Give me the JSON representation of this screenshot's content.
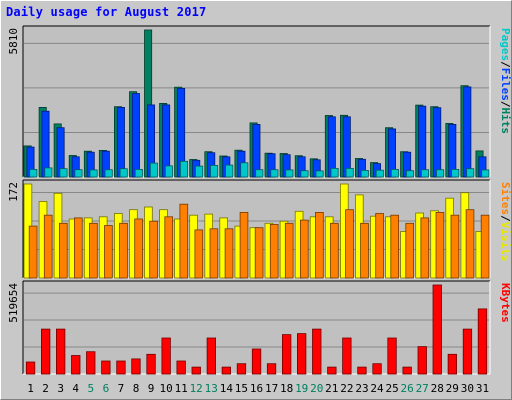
{
  "title": "Daily usage for August 2017",
  "chart_data": {
    "type": "bar",
    "categories": [
      "1",
      "2",
      "3",
      "4",
      "5",
      "6",
      "7",
      "8",
      "9",
      "10",
      "11",
      "12",
      "13",
      "14",
      "15",
      "16",
      "17",
      "18",
      "19",
      "20",
      "21",
      "22",
      "23",
      "24",
      "25",
      "26",
      "27",
      "28",
      "29",
      "30",
      "31"
    ],
    "weekend_days": [
      5,
      6,
      12,
      13,
      19,
      20,
      26,
      27
    ],
    "panels": [
      {
        "name": "hits-files-pages",
        "max_label": "5810",
        "ylim": [
          0,
          5810
        ],
        "legend": [
          {
            "text": "Pages",
            "color": "#00c8c8"
          },
          {
            "text": "/",
            "color": "#000000"
          },
          {
            "text": "Files",
            "color": "#0040ff"
          },
          {
            "text": "/",
            "color": "#000000"
          },
          {
            "text": "Hits",
            "color": "#008060"
          }
        ],
        "series": [
          {
            "name": "Hits",
            "color": "#008060",
            "values": [
              1230,
              2750,
              2100,
              850,
              1020,
              1050,
              2780,
              3370,
              5810,
              2910,
              3550,
              690,
              1000,
              830,
              1060,
              2140,
              940,
              930,
              840,
              720,
              2430,
              2440,
              730,
              570,
              1950,
              1000,
              2840,
              2780,
              2120,
              3610,
              1030
            ]
          },
          {
            "name": "Files",
            "color": "#0040ff",
            "values": [
              1180,
              2600,
              1950,
              800,
              980,
              1020,
              2750,
              3300,
              2850,
              2850,
              3500,
              660,
              960,
              800,
              1020,
              2080,
              920,
              880,
              800,
              680,
              2380,
              2380,
              700,
              530,
              1900,
              980,
              2800,
              2740,
              2080,
              3560,
              800
            ]
          },
          {
            "name": "Pages",
            "color": "#00c8c8",
            "values": [
              300,
              360,
              330,
              290,
              280,
              290,
              330,
              300,
              550,
              440,
              620,
              430,
              460,
              470,
              560,
              290,
              290,
              280,
              250,
              240,
              340,
              340,
              260,
              270,
              300,
              250,
              290,
              290,
              300,
              330,
              280
            ]
          }
        ]
      },
      {
        "name": "visits-sites",
        "max_label": "172",
        "ylim": [
          0,
          172
        ],
        "legend": [
          {
            "text": "Sites",
            "color": "#ff8000"
          },
          {
            "text": "/",
            "color": "#000000"
          },
          {
            "text": "Visits",
            "color": "#e8e800"
          }
        ],
        "series": [
          {
            "name": "Visits",
            "color": "#ffff00",
            "values": [
              172,
              140,
              155,
              108,
              110,
              112,
              118,
              125,
              130,
              125,
              108,
              115,
              117,
              110,
              95,
              92,
              100,
              104,
              122,
              112,
              112,
              172,
              152,
              113,
              112,
              85,
              119,
              123,
              146,
              156,
              85
            ]
          },
          {
            "name": "Sites",
            "color": "#ff8000",
            "values": [
              95,
              115,
              100,
              110,
              100,
              96,
              100,
              108,
              104,
              112,
              135,
              88,
              90,
              90,
              120,
              92,
              98,
              100,
              106,
              120,
              100,
              125,
              100,
              118,
              115,
              100,
              110,
              120,
              115,
              125,
              115
            ]
          }
        ]
      },
      {
        "name": "kbytes",
        "max_label": "519654",
        "ylim": [
          0,
          519654
        ],
        "legend": [
          {
            "text": "KBytes",
            "color": "#ff0000"
          }
        ],
        "series": [
          {
            "name": "KBytes",
            "color": "#ff0000",
            "values": [
              70000,
              262000,
              262000,
              108000,
              130000,
              76000,
              76000,
              88000,
              115000,
              210000,
              76000,
              40000,
              210000,
              40000,
              60000,
              146000,
              60000,
              230000,
              236000,
              262000,
              40000,
              210000,
              40000,
              60000,
              210000,
              40000,
              160000,
              519654,
              115000,
              262000,
              380000
            ]
          }
        ]
      }
    ]
  }
}
